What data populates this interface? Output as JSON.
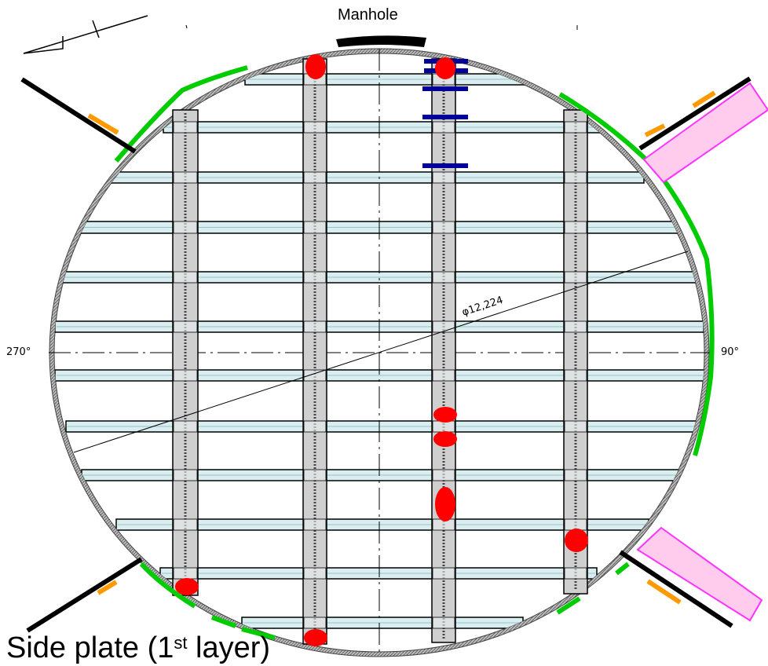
{
  "labels": {
    "manhole": "Manhole",
    "angle_left": "270°",
    "angle_right": "90°",
    "diameter": "φ12,224",
    "title_prefix": "Side plate (1",
    "title_sup": "st",
    "title_suffix": " layer)"
  },
  "colors": {
    "shell": "#8a8a8a",
    "beam_fill": "#cfcfcf",
    "plate_fill": "#d9eef0",
    "weld_green": "#00cc00",
    "clip_orange": "#ff9900",
    "nozzle_magenta": "#ff33ff",
    "nozzle_fill": "#ffccee",
    "marker_red": "#ff0000",
    "bar_navy": "#000099"
  },
  "icons": [
    "north-arrow-icon"
  ]
}
